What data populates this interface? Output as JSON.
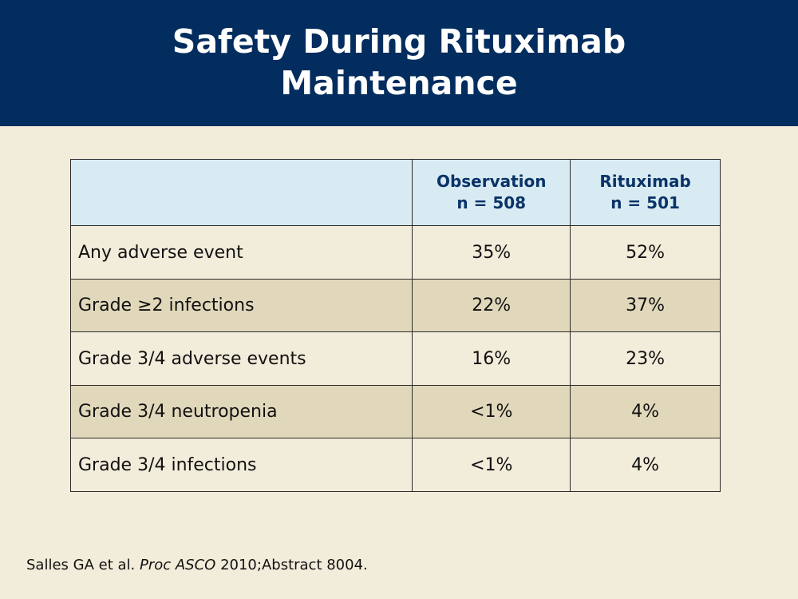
{
  "slide": {
    "title_line1": "Safety During Rituximab",
    "title_line2": "Maintenance"
  },
  "table": {
    "header": {
      "col1": "",
      "observation_line1": "Observation",
      "observation_line2": "n = 508",
      "rituximab_line1": "Rituximab",
      "rituximab_line2": "n = 501"
    },
    "rows": [
      {
        "label": "Any adverse event",
        "observation": "35%",
        "rituximab": "52%"
      },
      {
        "label": "Grade ≥2 infections",
        "observation": "22%",
        "rituximab": "37%"
      },
      {
        "label": "Grade 3/4 adverse events",
        "observation": "16%",
        "rituximab": "23%"
      },
      {
        "label": "Grade 3/4 neutropenia",
        "observation": "<1%",
        "rituximab": "4%"
      },
      {
        "label": "Grade 3/4 infections",
        "observation": "<1%",
        "rituximab": "4%"
      }
    ]
  },
  "citation": {
    "authors": "Salles GA et al.",
    "journal": "Proc ASCO",
    "rest": "2010;Abstract 8004."
  },
  "colors": {
    "title_band": "#032d5e",
    "background": "#f2ecda",
    "header_row": "#d8ebf2",
    "header_text": "#0a3368",
    "alt_row": "#e1d8bb"
  }
}
